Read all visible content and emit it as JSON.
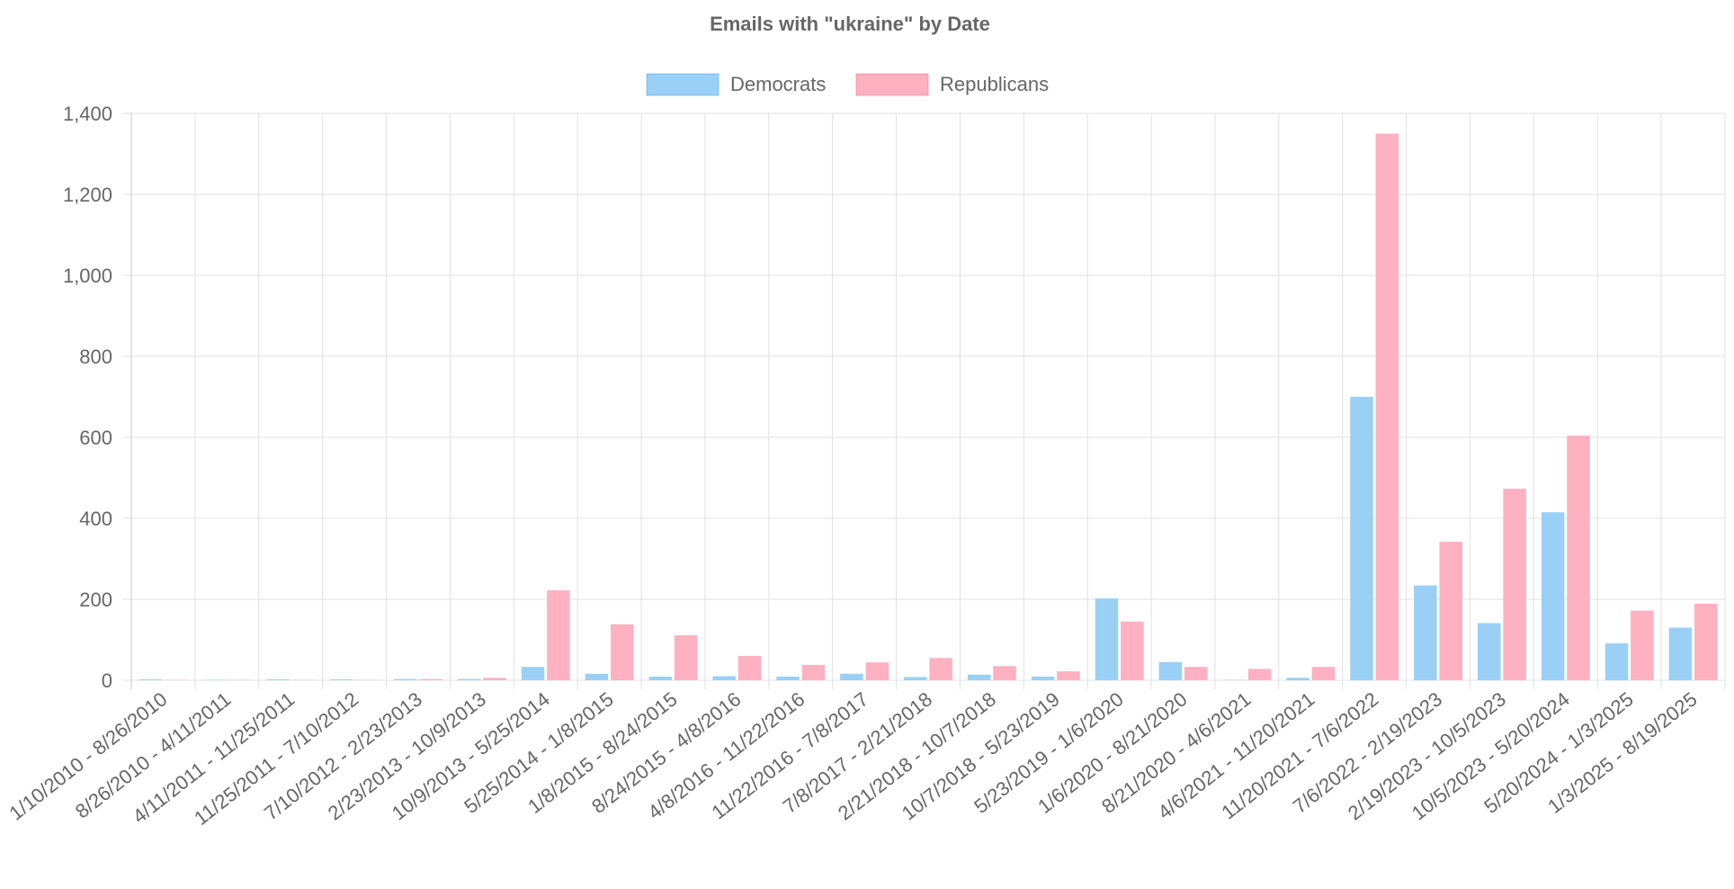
{
  "chart_data": {
    "type": "bar",
    "title": "Emails with \"ukraine\" by Date",
    "xlabel": "",
    "ylabel": "",
    "ylim": [
      0,
      1400
    ],
    "y_ticks": [
      "0",
      "200",
      "400",
      "600",
      "800",
      "1,000",
      "1,200",
      "1,400"
    ],
    "y_tick_values": [
      0,
      200,
      400,
      600,
      800,
      1000,
      1200,
      1400
    ],
    "grid": true,
    "legend_position": "top-center",
    "categories": [
      "1/10/2010 - 8/26/2010",
      "8/26/2010 - 4/11/2011",
      "4/11/2011 - 11/25/2011",
      "11/25/2011 - 7/10/2012",
      "7/10/2012 - 2/23/2013",
      "2/23/2013 - 10/9/2013",
      "10/9/2013 - 5/25/2014",
      "5/25/2014 - 1/8/2015",
      "1/8/2015 - 8/24/2015",
      "8/24/2015 - 4/8/2016",
      "4/8/2016 - 11/22/2016",
      "11/22/2016 - 7/8/2017",
      "7/8/2017 - 2/21/2018",
      "2/21/2018 - 10/7/2018",
      "10/7/2018 - 5/23/2019",
      "5/23/2019 - 1/6/2020",
      "1/6/2020 - 8/21/2020",
      "8/21/2020 - 4/6/2021",
      "4/6/2021 - 11/20/2021",
      "11/20/2021 - 7/6/2022",
      "7/6/2022 - 2/19/2023",
      "2/19/2023 - 10/5/2023",
      "10/5/2023 - 5/20/2024",
      "5/20/2024 - 1/3/2025",
      "1/3/2025 - 8/19/2025"
    ],
    "series": [
      {
        "name": "Democrats",
        "color": "#9ad0f5",
        "border": "#36a2eb",
        "values": [
          2,
          1,
          2,
          2,
          3,
          3,
          33,
          16,
          9,
          10,
          9,
          16,
          8,
          14,
          9,
          202,
          45,
          1,
          6,
          700,
          234,
          141,
          415,
          91,
          130
        ]
      },
      {
        "name": "Republicans",
        "color": "#ffb1c1",
        "border": "#ff6384",
        "values": [
          1,
          1,
          1,
          1,
          3,
          6,
          222,
          138,
          111,
          60,
          38,
          44,
          55,
          35,
          22,
          145,
          33,
          28,
          33,
          1350,
          342,
          473,
          604,
          172,
          189
        ]
      }
    ]
  }
}
